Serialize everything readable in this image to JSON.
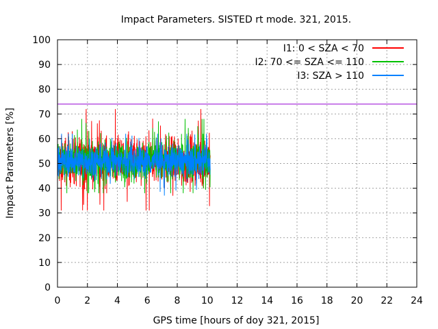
{
  "chart_data": {
    "type": "line",
    "title": "Impact Parameters. SISTED rt mode. 321, 2015.",
    "xlabel": "GPS time [hours of doy 321, 2015]",
    "ylabel": "Impact Parameters [%]",
    "xlim": [
      0,
      24
    ],
    "ylim": [
      0,
      100
    ],
    "x_ticks": [
      "0",
      "2",
      "4",
      "6",
      "8",
      "10",
      "12",
      "14",
      "16",
      "18",
      "20",
      "22",
      "24"
    ],
    "y_ticks": [
      "0",
      "10",
      "20",
      "30",
      "40",
      "50",
      "60",
      "70",
      "80",
      "90",
      "100"
    ],
    "grid": true,
    "legend_position": "top-right",
    "data_range_hours": [
      0,
      10.2
    ],
    "series": [
      {
        "name": "I1: 0 < SZA < 70",
        "color": "#ff0000",
        "center": 51,
        "spread": 9,
        "min": 31,
        "max": 72,
        "x_start": 0,
        "x_end": 10.2
      },
      {
        "name": "I2: 70 <= SZA <= 110",
        "color": "#00c000",
        "center": 51,
        "spread": 7,
        "min": 38,
        "max": 68,
        "x_start": 0,
        "x_end": 10.2
      },
      {
        "name": "I3: SZA > 110",
        "color": "#0080ff",
        "center": 51,
        "spread": 5.5,
        "min": 36,
        "max": 62,
        "x_start": 0,
        "x_end": 10.2
      }
    ],
    "reference_line": {
      "value": 74,
      "color": "#9400d3"
    }
  }
}
